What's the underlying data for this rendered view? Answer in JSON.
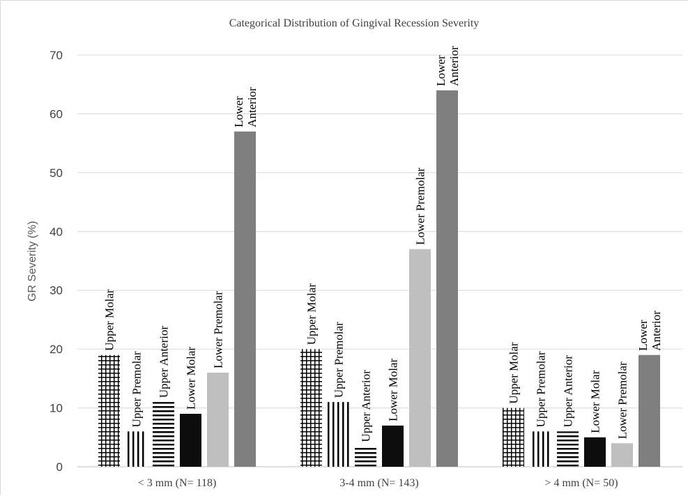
{
  "chart_data": {
    "type": "bar",
    "title": "Categorical Distribution of Gingival Recession Severity",
    "ylabel": "GR Severity (%)",
    "xlabel": "",
    "ylim": [
      0,
      70
    ],
    "yticks": [
      0,
      10,
      20,
      30,
      40,
      50,
      60,
      70
    ],
    "grid": true,
    "legend": "none",
    "categories": [
      "< 3 mm (N= 118)",
      "3-4 mm (N= 143)",
      "> 4 mm (N= 50)"
    ],
    "series": [
      {
        "name": "Upper Molar",
        "label_lines": [
          "Upper Molar"
        ],
        "pattern": "grid",
        "color": "#000000",
        "values": [
          19,
          20,
          10
        ]
      },
      {
        "name": "Upper Premolar",
        "label_lines": [
          "Upper Premolar"
        ],
        "pattern": "vertical",
        "color": "#000000",
        "values": [
          6,
          11,
          6
        ]
      },
      {
        "name": "Upper Anterior",
        "label_lines": [
          "Upper Anterior"
        ],
        "pattern": "horizontal",
        "color": "#000000",
        "values": [
          11,
          3.5,
          6
        ]
      },
      {
        "name": "Lower Molar",
        "label_lines": [
          "Lower Molar"
        ],
        "pattern": "solid",
        "color": "#0d0d0d",
        "values": [
          9,
          7,
          5
        ]
      },
      {
        "name": "Lower Premolar",
        "label_lines": [
          "Lower Premolar"
        ],
        "pattern": "solid",
        "color": "#bfbfbf",
        "values": [
          16,
          37,
          4
        ]
      },
      {
        "name": "Lower Anterior",
        "label_lines": [
          "Lower",
          "Anterior"
        ],
        "pattern": "solid",
        "color": "#7f7f7f",
        "values": [
          57,
          64,
          19
        ]
      }
    ]
  }
}
